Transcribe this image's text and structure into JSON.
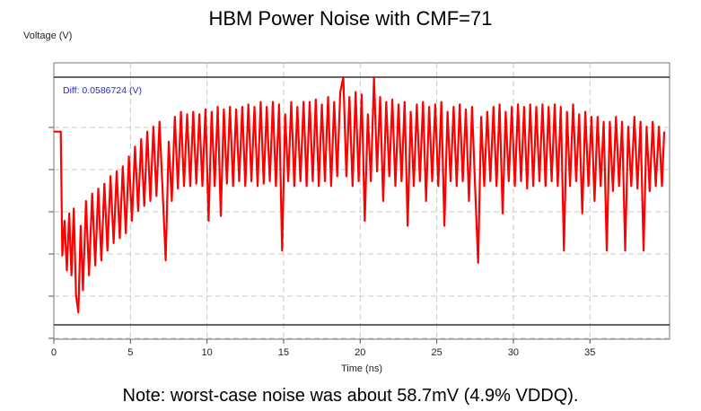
{
  "chart_data": {
    "type": "line",
    "title": "HBM Power Noise with CMF=71",
    "xlabel": "Time (ns)",
    "ylabel": "Voltage (V)",
    "xlim": [
      0,
      40
    ],
    "x_ticks": [
      "0",
      "5",
      "10",
      "15",
      "20",
      "25",
      "30",
      "35"
    ],
    "x_tick_values": [
      0,
      5,
      10,
      15,
      20,
      25,
      30,
      35
    ],
    "ylim": [
      0,
      1
    ],
    "y_tick_count": 6,
    "grid": true,
    "annotation": "Diff: 0.0586724 (V)",
    "series_color": "#ff0000",
    "series": [
      {
        "name": "",
        "points": [
          [
            0,
            0.78
          ],
          [
            0.3,
            0.78
          ],
          [
            0.45,
            0.78
          ],
          [
            0.55,
            0.28
          ],
          [
            0.7,
            0.42
          ],
          [
            0.85,
            0.22
          ],
          [
            1.0,
            0.45
          ],
          [
            1.15,
            0.2
          ],
          [
            1.3,
            0.47
          ],
          [
            1.45,
            0.12
          ],
          [
            1.6,
            0.05
          ],
          [
            1.75,
            0.4
          ],
          [
            1.9,
            0.14
          ],
          [
            2.1,
            0.5
          ],
          [
            2.3,
            0.2
          ],
          [
            2.5,
            0.53
          ],
          [
            2.7,
            0.24
          ],
          [
            2.9,
            0.55
          ],
          [
            3.1,
            0.26
          ],
          [
            3.3,
            0.57
          ],
          [
            3.5,
            0.3
          ],
          [
            3.7,
            0.6
          ],
          [
            3.9,
            0.33
          ],
          [
            4.1,
            0.62
          ],
          [
            4.3,
            0.35
          ],
          [
            4.5,
            0.64
          ],
          [
            4.7,
            0.37
          ],
          [
            4.9,
            0.68
          ],
          [
            5.1,
            0.42
          ],
          [
            5.3,
            0.72
          ],
          [
            5.5,
            0.46
          ],
          [
            5.7,
            0.75
          ],
          [
            5.9,
            0.48
          ],
          [
            6.1,
            0.78
          ],
          [
            6.3,
            0.5
          ],
          [
            6.5,
            0.8
          ],
          [
            6.7,
            0.52
          ],
          [
            6.9,
            0.82
          ],
          [
            7.1,
            0.54
          ],
          [
            7.3,
            0.26
          ],
          [
            7.5,
            0.74
          ],
          [
            7.7,
            0.5
          ],
          [
            7.9,
            0.84
          ],
          [
            8.1,
            0.55
          ],
          [
            8.3,
            0.86
          ],
          [
            8.5,
            0.56
          ],
          [
            8.7,
            0.85
          ],
          [
            8.9,
            0.56
          ],
          [
            9.1,
            0.86
          ],
          [
            9.3,
            0.57
          ],
          [
            9.5,
            0.85
          ],
          [
            9.7,
            0.56
          ],
          [
            9.9,
            0.87
          ],
          [
            10.1,
            0.42
          ],
          [
            10.3,
            0.86
          ],
          [
            10.5,
            0.56
          ],
          [
            10.7,
            0.88
          ],
          [
            10.9,
            0.44
          ],
          [
            11.1,
            0.87
          ],
          [
            11.3,
            0.57
          ],
          [
            11.5,
            0.88
          ],
          [
            11.7,
            0.56
          ],
          [
            11.9,
            0.87
          ],
          [
            12.1,
            0.58
          ],
          [
            12.3,
            0.88
          ],
          [
            12.5,
            0.56
          ],
          [
            12.7,
            0.89
          ],
          [
            12.9,
            0.58
          ],
          [
            13.1,
            0.88
          ],
          [
            13.3,
            0.56
          ],
          [
            13.5,
            0.9
          ],
          [
            13.7,
            0.57
          ],
          [
            13.9,
            0.88
          ],
          [
            14.1,
            0.58
          ],
          [
            14.3,
            0.9
          ],
          [
            14.5,
            0.56
          ],
          [
            14.7,
            0.89
          ],
          [
            14.9,
            0.3
          ],
          [
            15.1,
            0.85
          ],
          [
            15.3,
            0.58
          ],
          [
            15.5,
            0.9
          ],
          [
            15.7,
            0.56
          ],
          [
            15.9,
            0.88
          ],
          [
            16.1,
            0.58
          ],
          [
            16.3,
            0.9
          ],
          [
            16.5,
            0.56
          ],
          [
            16.7,
            0.9
          ],
          [
            16.9,
            0.58
          ],
          [
            17.1,
            0.91
          ],
          [
            17.3,
            0.56
          ],
          [
            17.5,
            0.89
          ],
          [
            17.7,
            0.58
          ],
          [
            17.9,
            0.92
          ],
          [
            18.1,
            0.56
          ],
          [
            18.3,
            0.9
          ],
          [
            18.5,
            0.6
          ],
          [
            18.7,
            0.94
          ],
          [
            18.9,
            1.0
          ],
          [
            19.1,
            0.6
          ],
          [
            19.3,
            0.92
          ],
          [
            19.5,
            0.56
          ],
          [
            19.7,
            0.94
          ],
          [
            19.9,
            0.58
          ],
          [
            20.1,
            0.93
          ],
          [
            20.3,
            0.42
          ],
          [
            20.5,
            0.85
          ],
          [
            20.7,
            0.58
          ],
          [
            20.9,
            1.0
          ],
          [
            21.1,
            0.62
          ],
          [
            21.3,
            0.92
          ],
          [
            21.5,
            0.5
          ],
          [
            21.7,
            0.9
          ],
          [
            21.9,
            0.6
          ],
          [
            22.1,
            0.91
          ],
          [
            22.3,
            0.56
          ],
          [
            22.5,
            0.89
          ],
          [
            22.7,
            0.58
          ],
          [
            22.9,
            0.9
          ],
          [
            23.1,
            0.4
          ],
          [
            23.3,
            0.86
          ],
          [
            23.5,
            0.56
          ],
          [
            23.7,
            0.89
          ],
          [
            23.9,
            0.58
          ],
          [
            24.1,
            0.9
          ],
          [
            24.3,
            0.5
          ],
          [
            24.5,
            0.88
          ],
          [
            24.7,
            0.58
          ],
          [
            24.9,
            0.89
          ],
          [
            25.1,
            0.56
          ],
          [
            25.3,
            0.9
          ],
          [
            25.5,
            0.4
          ],
          [
            25.7,
            0.86
          ],
          [
            25.9,
            0.58
          ],
          [
            26.1,
            0.88
          ],
          [
            26.3,
            0.56
          ],
          [
            26.5,
            0.89
          ],
          [
            26.7,
            0.58
          ],
          [
            26.9,
            0.87
          ],
          [
            27.1,
            0.5
          ],
          [
            27.3,
            0.88
          ],
          [
            27.5,
            0.56
          ],
          [
            27.7,
            0.25
          ],
          [
            27.9,
            0.84
          ],
          [
            28.1,
            0.56
          ],
          [
            28.3,
            0.86
          ],
          [
            28.5,
            0.58
          ],
          [
            28.7,
            0.88
          ],
          [
            28.9,
            0.56
          ],
          [
            29.1,
            0.89
          ],
          [
            29.3,
            0.45
          ],
          [
            29.5,
            0.86
          ],
          [
            29.7,
            0.58
          ],
          [
            29.9,
            0.88
          ],
          [
            30.1,
            0.56
          ],
          [
            30.3,
            0.89
          ],
          [
            30.5,
            0.58
          ],
          [
            30.7,
            0.88
          ],
          [
            30.9,
            0.55
          ],
          [
            31.1,
            0.89
          ],
          [
            31.3,
            0.56
          ],
          [
            31.5,
            0.88
          ],
          [
            31.7,
            0.58
          ],
          [
            31.9,
            0.89
          ],
          [
            32.1,
            0.56
          ],
          [
            32.3,
            0.88
          ],
          [
            32.5,
            0.58
          ],
          [
            32.7,
            0.89
          ],
          [
            32.9,
            0.56
          ],
          [
            33.1,
            0.88
          ],
          [
            33.3,
            0.3
          ],
          [
            33.5,
            0.86
          ],
          [
            33.7,
            0.56
          ],
          [
            33.9,
            0.89
          ],
          [
            34.1,
            0.58
          ],
          [
            34.3,
            0.85
          ],
          [
            34.5,
            0.45
          ],
          [
            34.7,
            0.86
          ],
          [
            34.9,
            0.56
          ],
          [
            35.1,
            0.84
          ],
          [
            35.3,
            0.5
          ],
          [
            35.5,
            0.84
          ],
          [
            35.7,
            0.56
          ],
          [
            35.9,
            0.82
          ],
          [
            36.1,
            0.3
          ],
          [
            36.3,
            0.82
          ],
          [
            36.5,
            0.54
          ],
          [
            36.7,
            0.84
          ],
          [
            36.9,
            0.56
          ],
          [
            37.1,
            0.82
          ],
          [
            37.3,
            0.3
          ],
          [
            37.5,
            0.8
          ],
          [
            37.7,
            0.56
          ],
          [
            37.9,
            0.84
          ],
          [
            38.1,
            0.55
          ],
          [
            38.3,
            0.82
          ],
          [
            38.5,
            0.3
          ],
          [
            38.7,
            0.8
          ],
          [
            38.9,
            0.54
          ],
          [
            39.1,
            0.82
          ],
          [
            39.3,
            0.56
          ],
          [
            39.5,
            0.8
          ],
          [
            39.7,
            0.56
          ],
          [
            39.85,
            0.78
          ]
        ]
      }
    ]
  },
  "note": "Note: worst-case noise was about 58.7mV (4.9% VDDQ)."
}
